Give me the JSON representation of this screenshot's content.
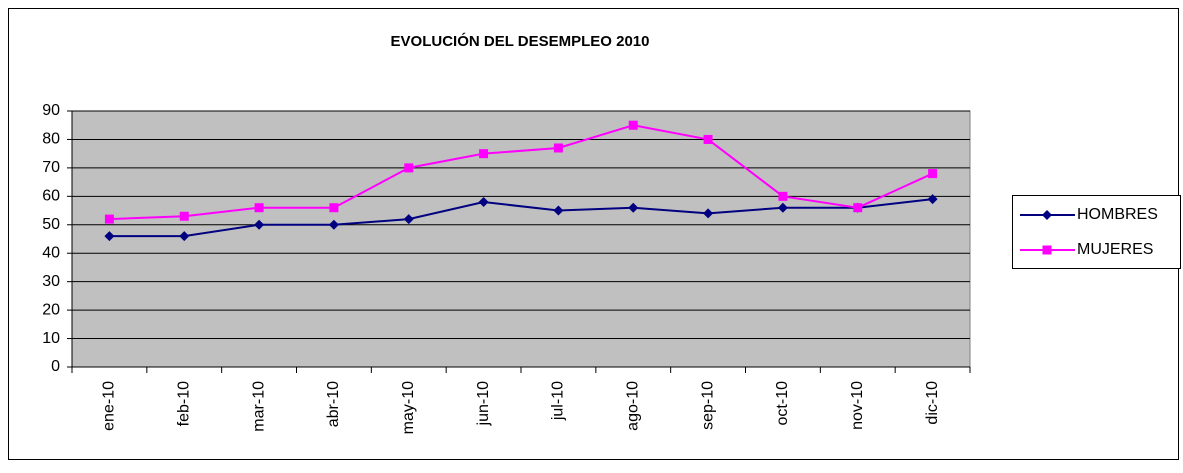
{
  "chart_data": {
    "type": "line",
    "title": "EVOLUCIÓN DEL DESEMPLEO 2010",
    "categories": [
      "ene-10",
      "feb-10",
      "mar-10",
      "abr-10",
      "may-10",
      "jun-10",
      "jul-10",
      "ago-10",
      "sep-10",
      "oct-10",
      "nov-10",
      "dic-10"
    ],
    "series": [
      {
        "name": "HOMBRES",
        "color": "#000080",
        "marker": "diamond",
        "values": [
          46,
          46,
          50,
          50,
          52,
          58,
          55,
          56,
          54,
          56,
          56,
          59
        ]
      },
      {
        "name": "MUJERES",
        "color": "#ff00ff",
        "marker": "square",
        "values": [
          52,
          53,
          56,
          56,
          70,
          75,
          77,
          85,
          80,
          60,
          56,
          68
        ]
      }
    ],
    "ylim": [
      0,
      90
    ],
    "yticks": [
      0,
      10,
      20,
      30,
      40,
      50,
      60,
      70,
      80,
      90
    ],
    "grid": true,
    "legend": "right"
  }
}
